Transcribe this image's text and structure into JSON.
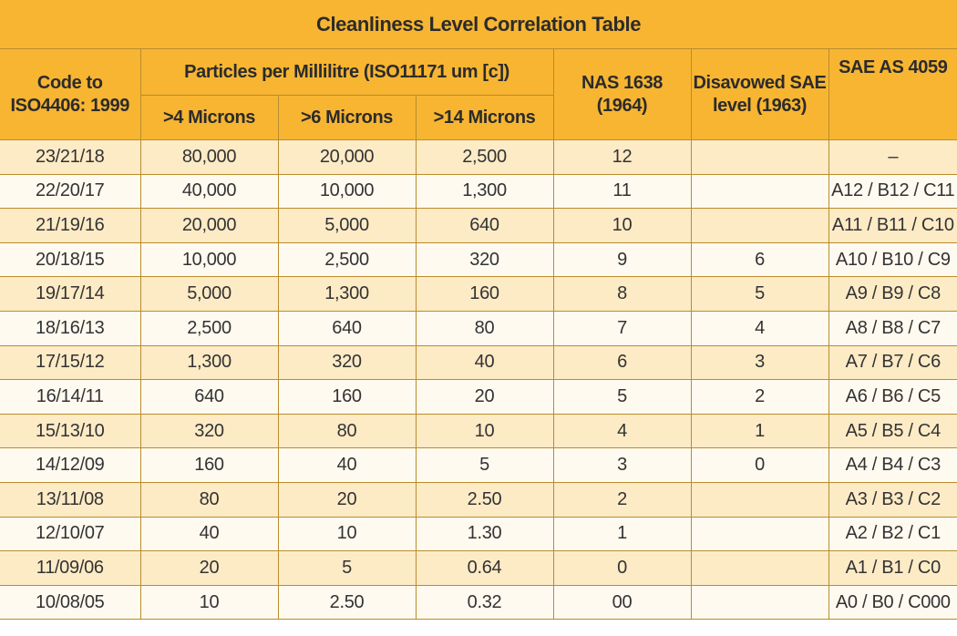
{
  "table": {
    "title": "Cleanliness Level Correlation Table",
    "headers": {
      "code_line1": "Code to",
      "code_line2": "ISO4406: 1999",
      "particles_group": "Particles per Millilitre (ISO11171 um [c])",
      "microns_4": ">4 Microns",
      "microns_6": ">6 Microns",
      "microns_14": ">14 Microns",
      "nas_line1": "NAS 1638",
      "nas_line2": "(1964)",
      "sae_old_line1": "Disavowed SAE",
      "sae_old_line2": "level (1963)",
      "sae_as": "SAE AS 4059"
    },
    "rows": [
      [
        "23/21/18",
        "80,000",
        "20,000",
        "2,500",
        "12",
        "",
        "–"
      ],
      [
        "22/20/17",
        "40,000",
        "10,000",
        "1,300",
        "11",
        "",
        "A12 / B12 / C11"
      ],
      [
        "21/19/16",
        "20,000",
        "5,000",
        "640",
        "10",
        "",
        "A11 / B11 / C10"
      ],
      [
        "20/18/15",
        "10,000",
        "2,500",
        "320",
        "9",
        "6",
        "A10 / B10 / C9"
      ],
      [
        "19/17/14",
        "5,000",
        "1,300",
        "160",
        "8",
        "5",
        "A9 / B9 / C8"
      ],
      [
        "18/16/13",
        "2,500",
        "640",
        "80",
        "7",
        "4",
        "A8 / B8 / C7"
      ],
      [
        "17/15/12",
        "1,300",
        "320",
        "40",
        "6",
        "3",
        "A7 / B7 / C6"
      ],
      [
        "16/14/11",
        "640",
        "160",
        "20",
        "5",
        "2",
        "A6 / B6 / C5"
      ],
      [
        "15/13/10",
        "320",
        "80",
        "10",
        "4",
        "1",
        "A5 / B5 / C4"
      ],
      [
        "14/12/09",
        "160",
        "40",
        "5",
        "3",
        "0",
        "A4 / B4 / C3"
      ],
      [
        "13/11/08",
        "80",
        "20",
        "2.50",
        "2",
        "",
        "A3 / B3 / C2"
      ],
      [
        "12/10/07",
        "40",
        "10",
        "1.30",
        "1",
        "",
        "A2 / B2 / C1"
      ],
      [
        "11/09/06",
        "20",
        "5",
        "0.64",
        "0",
        "",
        "A1 / B1 / C0"
      ],
      [
        "10/08/05",
        "10",
        "2.50",
        "0.32",
        "00",
        "",
        "A0 / B0 / C000"
      ]
    ]
  },
  "colors": {
    "header_background": "#f7b532",
    "row_odd_background": "#fdebc6",
    "row_even_background": "#fffaf0",
    "grid_lines": "#b98c2e"
  }
}
